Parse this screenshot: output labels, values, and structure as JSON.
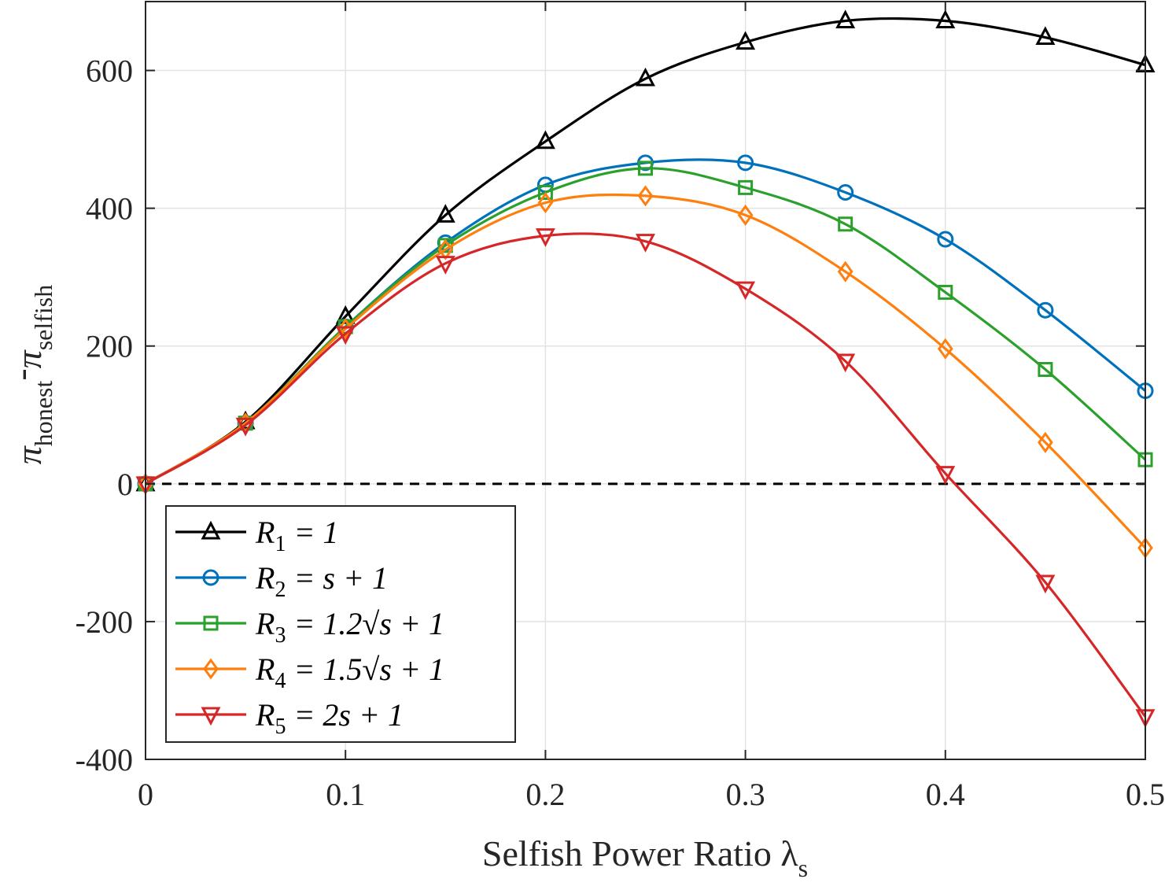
{
  "chart_data": {
    "type": "line",
    "title": "",
    "xlabel": "Selfish Power Ratio λ",
    "xlabel_sub": "s",
    "ylabel_main_1": "π",
    "ylabel_sub_1": "honest",
    "ylabel_dash": "-",
    "ylabel_main_2": "π",
    "ylabel_sub_2": "selfish",
    "xlim": [
      0,
      0.5
    ],
    "ylim": [
      -400,
      700
    ],
    "x_ticks": [
      0,
      0.1,
      0.2,
      0.3,
      0.4,
      0.5
    ],
    "x_tick_labels": [
      "0",
      "0.1",
      "0.2",
      "0.3",
      "0.4",
      "0.5"
    ],
    "y_ticks": [
      -400,
      -200,
      0,
      200,
      400,
      600
    ],
    "y_tick_labels": [
      "-400",
      "-200",
      "0",
      "200",
      "400",
      "600"
    ],
    "grid": true,
    "legend_position": "bottom-left",
    "zero_line": {
      "y": 0,
      "style": "dashed",
      "color": "#000000"
    },
    "x": [
      0,
      0.05,
      0.1,
      0.15,
      0.2,
      0.25,
      0.3,
      0.35,
      0.4,
      0.45,
      0.5
    ],
    "series": [
      {
        "name": "R1 = 1",
        "legend_parts": [
          "R",
          "1",
          " = 1"
        ],
        "color": "#000000",
        "marker": "triangle-up",
        "values": [
          0,
          90,
          243,
          390,
          497,
          588,
          641,
          672,
          672,
          648,
          608
        ]
      },
      {
        "name": "R2 = s + 1",
        "legend_parts": [
          "R",
          "2",
          " = s + 1"
        ],
        "color": "#0072BD",
        "marker": "circle",
        "values": [
          0,
          88,
          228,
          350,
          434,
          466,
          466,
          423,
          355,
          252,
          135
        ]
      },
      {
        "name": "R3 = 1.2√s + 1",
        "legend_parts": [
          "R",
          "3",
          " = 1.2√s + 1"
        ],
        "color": "#2CA02C",
        "marker": "square",
        "values": [
          0,
          88,
          228,
          346,
          423,
          458,
          430,
          377,
          278,
          166,
          35
        ]
      },
      {
        "name": "R4 = 1.5√s + 1",
        "legend_parts": [
          "R",
          "4",
          " = 1.5√s + 1"
        ],
        "color": "#FF7F0E",
        "marker": "diamond",
        "values": [
          0,
          88,
          225,
          340,
          408,
          418,
          390,
          308,
          196,
          60,
          -93
        ]
      },
      {
        "name": "R5 = 2s + 1",
        "legend_parts": [
          "R",
          "5",
          " = 2s + 1"
        ],
        "color": "#D62728",
        "marker": "triangle-down",
        "values": [
          0,
          85,
          218,
          320,
          360,
          352,
          283,
          178,
          15,
          -143,
          -338
        ]
      }
    ]
  }
}
